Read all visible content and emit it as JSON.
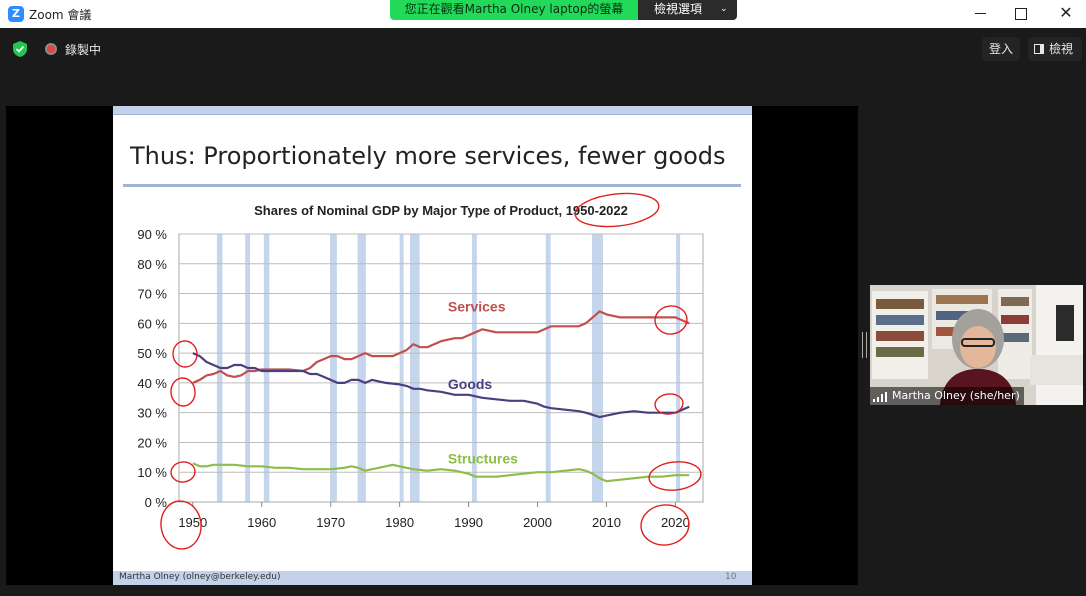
{
  "window": {
    "app_title": "Zoom 會議",
    "logo_glyph": "Z"
  },
  "share_banner": {
    "text": "您正在觀看Martha Olney laptop的螢幕",
    "view_options_label": "檢視選項",
    "chevron": "⌄"
  },
  "meeting_bar": {
    "recording_label": "錄製中",
    "signin_label": "登入",
    "view_label": "檢視"
  },
  "slide": {
    "title": "Thus: Proportionately more services, fewer goods",
    "footer": "Martha Olney (olney@berkeley.edu)",
    "page_number": "10"
  },
  "participant": {
    "name": "Martha Olney (she/her)"
  },
  "colors": {
    "services": "#c0504d",
    "goods": "#4a3f7f",
    "structures": "#8cbd4a",
    "recession_band": "#c5d5ec",
    "annotation": "#e02020"
  },
  "chart_data": {
    "type": "line",
    "title": "Shares of Nominal GDP by Major Type of Product, 1950-2022",
    "xlabel": "",
    "ylabel": "",
    "xlim": [
      1950,
      2022
    ],
    "ylim": [
      0,
      90
    ],
    "x_ticks": [
      "1950",
      "1960",
      "1970",
      "1980",
      "1990",
      "2000",
      "2010",
      "2020"
    ],
    "y_ticks": [
      "0 %",
      "10 %",
      "20 %",
      "30 %",
      "40 %",
      "50 %",
      "60 %",
      "70 %",
      "80 %",
      "90 %"
    ],
    "grid": "horizontal",
    "recessions": [
      [
        1953.5,
        1954.3
      ],
      [
        1957.6,
        1958.3
      ],
      [
        1960.3,
        1961.1
      ],
      [
        1969.9,
        1970.9
      ],
      [
        1973.9,
        1975.1
      ],
      [
        1980.0,
        1980.5
      ],
      [
        1981.5,
        1982.9
      ],
      [
        1990.5,
        1991.2
      ],
      [
        2001.2,
        2001.9
      ],
      [
        2007.9,
        2009.5
      ],
      [
        2020.1,
        2020.5
      ]
    ],
    "series": [
      {
        "name": "Services",
        "values": [
          [
            1950,
            40
          ],
          [
            1951,
            41
          ],
          [
            1952,
            42.5
          ],
          [
            1953,
            43
          ],
          [
            1954,
            44
          ],
          [
            1955,
            42.5
          ],
          [
            1956,
            42
          ],
          [
            1957,
            42.5
          ],
          [
            1958,
            44
          ],
          [
            1959,
            44
          ],
          [
            1960,
            44.5
          ],
          [
            1962,
            44.5
          ],
          [
            1964,
            44.5
          ],
          [
            1966,
            44
          ],
          [
            1967,
            45
          ],
          [
            1968,
            47
          ],
          [
            1969,
            48
          ],
          [
            1970,
            49
          ],
          [
            1971,
            49
          ],
          [
            1972,
            48
          ],
          [
            1973,
            48
          ],
          [
            1974,
            49
          ],
          [
            1975,
            50
          ],
          [
            1976,
            49
          ],
          [
            1977,
            49
          ],
          [
            1978,
            49
          ],
          [
            1979,
            49
          ],
          [
            1980,
            50
          ],
          [
            1981,
            51
          ],
          [
            1982,
            53
          ],
          [
            1983,
            52
          ],
          [
            1984,
            52
          ],
          [
            1985,
            53
          ],
          [
            1986,
            54
          ],
          [
            1988,
            55
          ],
          [
            1989,
            55
          ],
          [
            1990,
            56
          ],
          [
            1991,
            57
          ],
          [
            1992,
            58
          ],
          [
            1994,
            57
          ],
          [
            1996,
            57
          ],
          [
            1998,
            57
          ],
          [
            2000,
            57
          ],
          [
            2001,
            58
          ],
          [
            2002,
            59
          ],
          [
            2004,
            59
          ],
          [
            2006,
            59
          ],
          [
            2007,
            60
          ],
          [
            2008,
            62
          ],
          [
            2009,
            64
          ],
          [
            2010,
            63
          ],
          [
            2012,
            62
          ],
          [
            2014,
            62
          ],
          [
            2016,
            62
          ],
          [
            2018,
            62
          ],
          [
            2020,
            62
          ],
          [
            2021,
            61
          ],
          [
            2022,
            60
          ]
        ]
      },
      {
        "name": "Goods",
        "values": [
          [
            1950,
            50
          ],
          [
            1951,
            49
          ],
          [
            1952,
            47
          ],
          [
            1953,
            46
          ],
          [
            1954,
            45
          ],
          [
            1955,
            45
          ],
          [
            1956,
            46
          ],
          [
            1957,
            46
          ],
          [
            1958,
            45
          ],
          [
            1959,
            45
          ],
          [
            1960,
            44
          ],
          [
            1962,
            44
          ],
          [
            1964,
            44
          ],
          [
            1966,
            44
          ],
          [
            1967,
            43
          ],
          [
            1968,
            43
          ],
          [
            1969,
            42
          ],
          [
            1970,
            41
          ],
          [
            1971,
            40
          ],
          [
            1972,
            40
          ],
          [
            1973,
            41
          ],
          [
            1974,
            41
          ],
          [
            1975,
            40
          ],
          [
            1976,
            41
          ],
          [
            1978,
            40
          ],
          [
            1980,
            39.5
          ],
          [
            1981,
            39
          ],
          [
            1982,
            38
          ],
          [
            1983,
            38
          ],
          [
            1984,
            37.5
          ],
          [
            1986,
            37
          ],
          [
            1988,
            36
          ],
          [
            1990,
            36
          ],
          [
            1992,
            35
          ],
          [
            1994,
            34.5
          ],
          [
            1996,
            34
          ],
          [
            1998,
            34
          ],
          [
            2000,
            33
          ],
          [
            2001,
            32
          ],
          [
            2002,
            31.5
          ],
          [
            2004,
            31
          ],
          [
            2006,
            30.5
          ],
          [
            2007,
            30
          ],
          [
            2009,
            28.5
          ],
          [
            2010,
            29
          ],
          [
            2012,
            30
          ],
          [
            2014,
            30.5
          ],
          [
            2016,
            30
          ],
          [
            2018,
            30
          ],
          [
            2020,
            30
          ],
          [
            2021,
            31
          ],
          [
            2022,
            32
          ]
        ]
      },
      {
        "name": "Structures",
        "values": [
          [
            1950,
            13
          ],
          [
            1951,
            12
          ],
          [
            1952,
            12
          ],
          [
            1953,
            12.5
          ],
          [
            1954,
            12.5
          ],
          [
            1955,
            12.5
          ],
          [
            1956,
            12.5
          ],
          [
            1958,
            12
          ],
          [
            1960,
            12
          ],
          [
            1962,
            11.5
          ],
          [
            1964,
            11.5
          ],
          [
            1966,
            11
          ],
          [
            1968,
            11
          ],
          [
            1970,
            11
          ],
          [
            1972,
            11.5
          ],
          [
            1973,
            12
          ],
          [
            1974,
            11.5
          ],
          [
            1975,
            10.5
          ],
          [
            1976,
            11
          ],
          [
            1977,
            11.5
          ],
          [
            1978,
            12
          ],
          [
            1979,
            12.5
          ],
          [
            1980,
            12
          ],
          [
            1981,
            11.5
          ],
          [
            1982,
            11
          ],
          [
            1984,
            10.5
          ],
          [
            1986,
            11
          ],
          [
            1988,
            10.5
          ],
          [
            1990,
            9.5
          ],
          [
            1991,
            8.5
          ],
          [
            1992,
            8.5
          ],
          [
            1994,
            8.5
          ],
          [
            1996,
            9
          ],
          [
            1998,
            9.5
          ],
          [
            2000,
            10
          ],
          [
            2002,
            10
          ],
          [
            2004,
            10.5
          ],
          [
            2006,
            11
          ],
          [
            2007,
            10.5
          ],
          [
            2008,
            9.5
          ],
          [
            2009,
            8
          ],
          [
            2010,
            7
          ],
          [
            2012,
            7.5
          ],
          [
            2014,
            8
          ],
          [
            2016,
            8.5
          ],
          [
            2018,
            8.5
          ],
          [
            2020,
            9
          ],
          [
            2021,
            9
          ],
          [
            2022,
            9
          ]
        ]
      }
    ],
    "label_positions": {
      "Services": [
        1987,
        64
      ],
      "Goods": [
        1987,
        38
      ],
      "Structures": [
        1987,
        13
      ]
    }
  }
}
